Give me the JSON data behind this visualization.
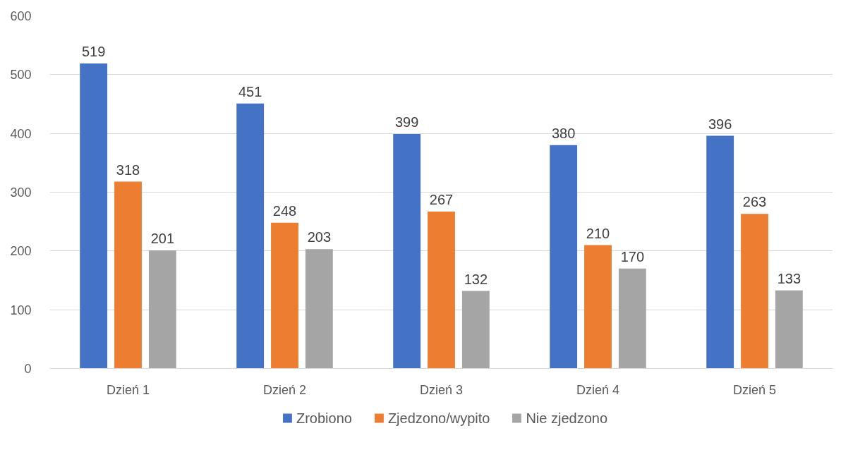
{
  "chart_data": {
    "type": "bar",
    "categories": [
      "Dzień 1",
      "Dzień 2",
      "Dzień 3",
      "Dzień 4",
      "Dzień 5"
    ],
    "series": [
      {
        "name": "Zrobiono",
        "color": "#4472c4",
        "values": [
          519,
          451,
          399,
          380,
          396
        ]
      },
      {
        "name": "Zjedzono/wypito",
        "color": "#ed7d31",
        "values": [
          318,
          248,
          267,
          210,
          263
        ]
      },
      {
        "name": "Nie zjedzono",
        "color": "#a5a5a5",
        "values": [
          201,
          203,
          132,
          170,
          133
        ]
      }
    ],
    "ylim": [
      0,
      600
    ],
    "yticks": [
      0,
      100,
      200,
      300,
      400,
      500,
      600
    ],
    "grid": "y",
    "legend": "bottom",
    "data_labels": true
  }
}
